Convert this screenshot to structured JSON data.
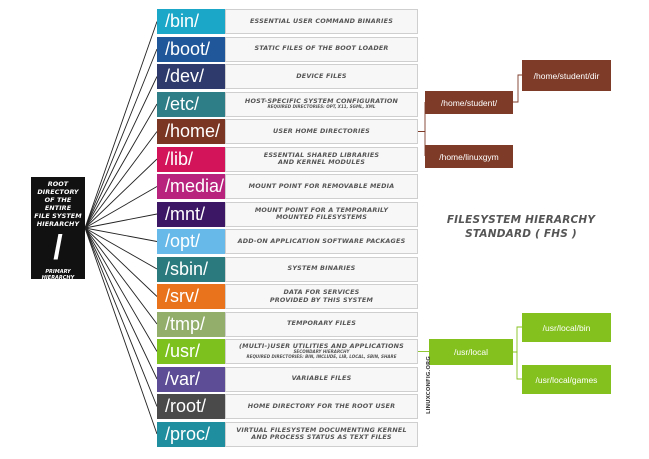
{
  "root": {
    "title": "ROOT DIRECTORY\nOF THE ENTIRE\nFILE SYSTEM\nHIERARCHY",
    "symbol": "/",
    "subtitle": "PRIMARY HIERARCHY"
  },
  "directories": [
    {
      "name": "/bin/",
      "color": "#1aa7c8",
      "desc": "ESSENTIAL USER COMMAND BINARIES",
      "sub": ""
    },
    {
      "name": "/boot/",
      "color": "#20569a",
      "desc": "STATIC FILES OF THE BOOT LOADER",
      "sub": ""
    },
    {
      "name": "/dev/",
      "color": "#2d3a6b",
      "desc": "DEVICE FILES",
      "sub": ""
    },
    {
      "name": "/etc/",
      "color": "#2d7e86",
      "desc": "HOST-SPECIFIC SYSTEM CONFIGURATION",
      "sub": "REQUIRED DIRECTORIES: OPT, X11, SGML, XML"
    },
    {
      "name": "/home/",
      "color": "#7a3523",
      "desc": "USER HOME DIRECTORIES",
      "sub": ""
    },
    {
      "name": "/lib/",
      "color": "#d4145a",
      "desc": "ESSENTIAL SHARED LIBRARIES\nAND KERNEL MODULES",
      "sub": ""
    },
    {
      "name": "/media/",
      "color": "#b8247d",
      "desc": "MOUNT POINT FOR REMOVABLE MEDIA",
      "sub": ""
    },
    {
      "name": "/mnt/",
      "color": "#3c1766",
      "desc": "MOUNT POINT FOR A TEMPORARILY\nMOUNTED FILESYSTEMS",
      "sub": ""
    },
    {
      "name": "/opt/",
      "color": "#66b9e8",
      "desc": "ADD-ON APPLICATION SOFTWARE PACKAGES",
      "sub": ""
    },
    {
      "name": "/sbin/",
      "color": "#2b7a7e",
      "desc": "SYSTEM BINARIES",
      "sub": ""
    },
    {
      "name": "/srv/",
      "color": "#e8731c",
      "desc": "DATA FOR SERVICES\nPROVIDED BY THIS SYSTEM",
      "sub": ""
    },
    {
      "name": "/tmp/",
      "color": "#93ad6b",
      "desc": "TEMPORARY FILES",
      "sub": ""
    },
    {
      "name": "/usr/",
      "color": "#7dc11f",
      "desc": "(MULTI-)USER UTILITIES AND APPLICATIONS",
      "sub": "SECONDARY HIERARCHY\nREQUIRED DIRECTORIES: BIN, INCLUDE, LIB, LOCAL, SBIN, SHARE"
    },
    {
      "name": "/var/",
      "color": "#5d4d96",
      "desc": "VARIABLE FILES",
      "sub": ""
    },
    {
      "name": "/root/",
      "color": "#4a4a4a",
      "desc": "HOME DIRECTORY FOR THE ROOT USER",
      "sub": ""
    },
    {
      "name": "/proc/",
      "color": "#1f8e9e",
      "desc": "VIRTUAL FILESYSTEM DOCUMENTING KERNEL\nAND PROCESS STATUS AS TEXT FILES",
      "sub": ""
    }
  ],
  "home_tree": {
    "student": "/home/student/",
    "student_dir": "/home/student/dir",
    "linuxgym": "/home/linuxgym"
  },
  "usr_tree": {
    "local": "/usr/local",
    "local_bin": "/usr/local/bin",
    "local_games": "/usr/local/games"
  },
  "fhs_title": "FILESYSTEM HIERARCHY\nSTANDARD ( FHS )",
  "watermark": "LINUXCONFIG.ORG",
  "colors": {
    "home_branch": "#7d3b28",
    "usr_branch": "#84c11e",
    "root_box": "#111111"
  }
}
